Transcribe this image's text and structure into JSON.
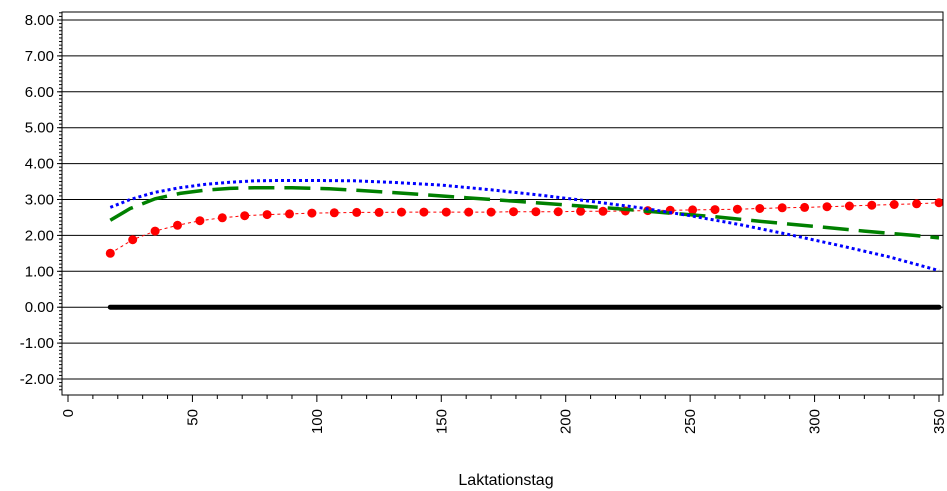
{
  "chart_data": {
    "type": "line",
    "title": "",
    "xlabel": "Laktationstag",
    "ylabel": "",
    "xlim": [
      0,
      350
    ],
    "ylim": [
      -2.3,
      8.5
    ],
    "x_ticks": [
      0,
      50,
      100,
      150,
      200,
      250,
      300,
      350
    ],
    "y_ticks": [
      "-2.00",
      "-1.00",
      "0.00",
      "1.00",
      "2.00",
      "3.00",
      "4.00",
      "5.00",
      "6.00",
      "7.00",
      "8.00"
    ],
    "grid": "horizontal",
    "series": [
      {
        "style": "dotted-markers",
        "color": "#ff0000",
        "x": [
          17,
          26,
          35,
          44,
          53,
          62,
          71,
          80,
          89,
          98,
          107,
          116,
          125,
          134,
          143,
          152,
          161,
          170,
          179,
          188,
          197,
          206,
          215,
          224,
          233,
          242,
          251,
          260,
          269,
          278,
          287,
          296,
          305,
          314,
          323,
          332,
          341,
          350
        ],
        "values": [
          1.5,
          1.88,
          2.12,
          2.28,
          2.41,
          2.49,
          2.55,
          2.58,
          2.6,
          2.62,
          2.63,
          2.64,
          2.64,
          2.65,
          2.65,
          2.65,
          2.65,
          2.65,
          2.66,
          2.66,
          2.66,
          2.67,
          2.67,
          2.68,
          2.69,
          2.7,
          2.71,
          2.72,
          2.73,
          2.75,
          2.77,
          2.78,
          2.8,
          2.82,
          2.84,
          2.86,
          2.88,
          2.91
        ]
      },
      {
        "style": "long-dash",
        "color": "#008000",
        "x": [
          17,
          25,
          35,
          45,
          55,
          65,
          75,
          90,
          105,
          120,
          140,
          160,
          180,
          200,
          220,
          240,
          260,
          280,
          300,
          320,
          340,
          350
        ],
        "values": [
          2.42,
          2.75,
          3.02,
          3.17,
          3.26,
          3.31,
          3.33,
          3.33,
          3.3,
          3.24,
          3.15,
          3.05,
          2.95,
          2.85,
          2.75,
          2.63,
          2.52,
          2.38,
          2.25,
          2.12,
          2.0,
          1.93
        ]
      },
      {
        "style": "dotted",
        "color": "#0000ff",
        "x": [
          17,
          25,
          35,
          45,
          55,
          65,
          75,
          85,
          100,
          115,
          130,
          150,
          170,
          190,
          210,
          230,
          250,
          270,
          290,
          310,
          330,
          350
        ],
        "values": [
          2.78,
          3.0,
          3.2,
          3.33,
          3.42,
          3.48,
          3.52,
          3.53,
          3.53,
          3.52,
          3.48,
          3.4,
          3.27,
          3.12,
          2.95,
          2.77,
          2.55,
          2.3,
          2.02,
          1.72,
          1.4,
          1.02
        ]
      },
      {
        "style": "thick-solid",
        "color": "#000000",
        "x": [
          17,
          350
        ],
        "values": [
          0.0,
          0.0
        ]
      }
    ]
  }
}
